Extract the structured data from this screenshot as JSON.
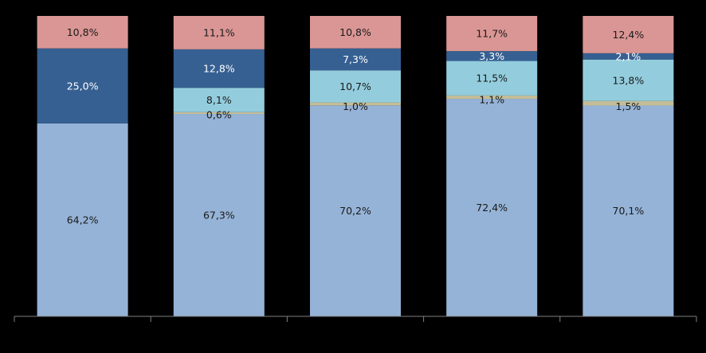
{
  "chart_data": {
    "type": "bar",
    "stacked": true,
    "normalized": true,
    "categories": [
      "",
      "",
      "",
      "",
      ""
    ],
    "ylim": [
      0,
      100
    ],
    "grid": false,
    "legend": "none",
    "series": [
      {
        "color": "#95B3D7",
        "labelColor": "#1a1a1a",
        "values": [
          64.2,
          67.3,
          70.2,
          72.4,
          70.1
        ],
        "labels": [
          "64,2%",
          "67,3%",
          "70,2%",
          "72,4%",
          "70,1%"
        ]
      },
      {
        "color": "#C4BD97",
        "labelColor": "#1a1a1a",
        "values": [
          0,
          0.6,
          1.0,
          1.1,
          1.5
        ],
        "labels": [
          "",
          "0,6%",
          "1,0%",
          "1,1%",
          "1,5%"
        ]
      },
      {
        "color": "#93CDDD",
        "labelColor": "#1a1a1a",
        "values": [
          0,
          8.1,
          10.7,
          11.5,
          13.8
        ],
        "labels": [
          "",
          "8,1%",
          "10,7%",
          "11,5%",
          "13,8%"
        ]
      },
      {
        "color": "#366092",
        "labelColor": "#ffffff",
        "values": [
          25.0,
          12.8,
          7.3,
          3.3,
          2.1
        ],
        "labels": [
          "25,0%",
          "12,8%",
          "7,3%",
          "3,3%",
          "2,1%"
        ]
      },
      {
        "color": "#DA9694",
        "labelColor": "#1a1a1a",
        "values": [
          10.8,
          11.1,
          10.8,
          11.7,
          12.4
        ],
        "labels": [
          "10,8%",
          "11,1%",
          "10,8%",
          "11,7%",
          "12,4%"
        ]
      }
    ]
  }
}
